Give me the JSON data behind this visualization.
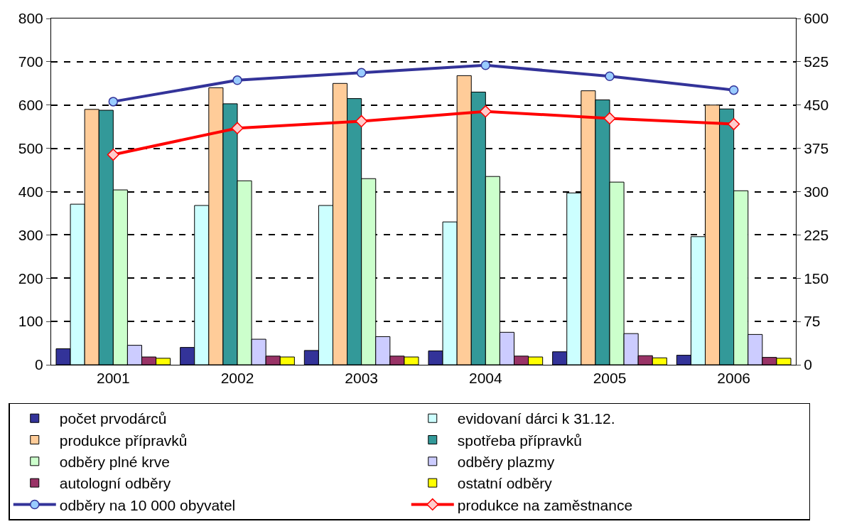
{
  "chart_data": {
    "type": "bar",
    "categories": [
      "2001",
      "2002",
      "2003",
      "2004",
      "2005",
      "2006"
    ],
    "series": [
      {
        "name": "počet prvodárců",
        "color": "#333399",
        "values": [
          37,
          40,
          33,
          32,
          30,
          22
        ]
      },
      {
        "name": "evidovaní dárci k 31.12.",
        "color": "#ccffff",
        "values": [
          371,
          368,
          368,
          330,
          397,
          296
        ]
      },
      {
        "name": "produkce přípravků",
        "color": "#ffcc99",
        "values": [
          590,
          640,
          650,
          668,
          633,
          600
        ]
      },
      {
        "name": "spotřeba přípravků",
        "color": "#339999",
        "values": [
          588,
          603,
          615,
          630,
          612,
          591
        ]
      },
      {
        "name": "odběry plné krve",
        "color": "#ccffcc",
        "values": [
          404,
          425,
          430,
          435,
          422,
          402
        ]
      },
      {
        "name": "odběry plazmy",
        "color": "#ccccff",
        "values": [
          45,
          59,
          65,
          75,
          72,
          70
        ]
      },
      {
        "name": "autologní odběry",
        "color": "#993366",
        "values": [
          18,
          20,
          20,
          20,
          21,
          17
        ]
      },
      {
        "name": "ostatní odběry",
        "color": "#ffff00",
        "values": [
          15,
          18,
          18,
          18,
          16,
          15
        ]
      },
      {
        "name": "odběry na 10 000 obyvatel",
        "type": "line",
        "axis": "y2",
        "marker": "circle",
        "color": "#333399",
        "values": [
          456,
          493,
          506,
          519,
          500,
          476
        ]
      },
      {
        "name": "produkce na zaměstnance",
        "type": "line",
        "axis": "y2",
        "marker": "diamond",
        "color": "#ff0000",
        "values": [
          364,
          410,
          422,
          439,
          427,
          417
        ]
      }
    ],
    "ylim": [
      0,
      800
    ],
    "yticks": [
      0,
      100,
      200,
      300,
      400,
      500,
      600,
      700,
      800
    ],
    "y2lim": [
      0,
      600
    ],
    "y2ticks": [
      0,
      75,
      150,
      225,
      300,
      375,
      450,
      525,
      600
    ],
    "grid": "y",
    "legend": "bottom"
  }
}
